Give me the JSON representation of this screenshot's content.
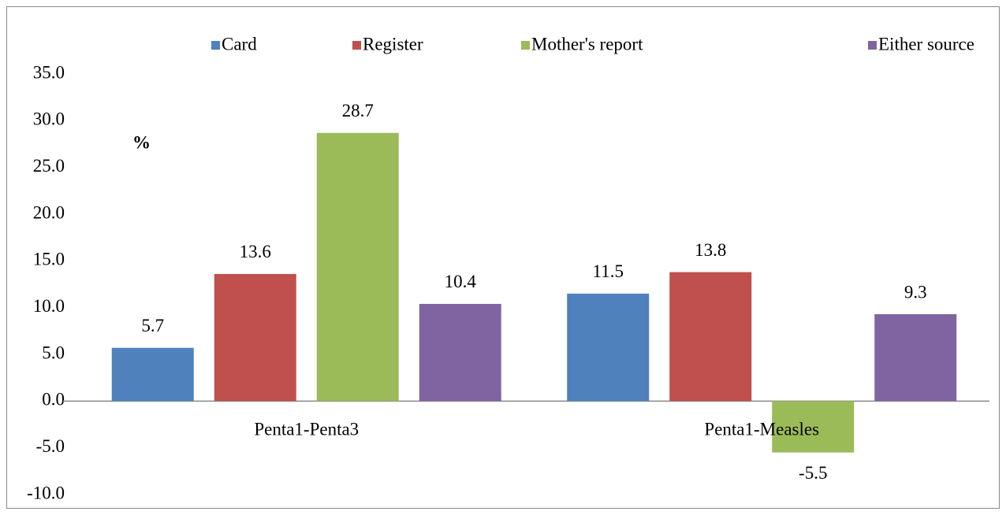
{
  "chart_data": {
    "type": "bar",
    "annotation": "%",
    "categories": [
      "Penta1-Penta3",
      "Penta1-Measles"
    ],
    "series": [
      {
        "name": "Card",
        "color": "#4f81bd",
        "values": [
          5.7,
          11.5
        ]
      },
      {
        "name": "Register",
        "color": "#c0504d",
        "values": [
          13.6,
          13.8
        ]
      },
      {
        "name": "Mother's report",
        "color": "#9bbb59",
        "values": [
          28.7,
          -5.5
        ]
      },
      {
        "name": "Either source",
        "color": "#8064a2",
        "values": [
          10.4,
          9.3
        ]
      }
    ],
    "ylim": [
      -10,
      35
    ],
    "yticks": [
      {
        "value": -10,
        "label": "-10.0"
      },
      {
        "value": -5,
        "label": "-5.0"
      },
      {
        "value": 0,
        "label": "0.0"
      },
      {
        "value": 5,
        "label": "5.0"
      },
      {
        "value": 10,
        "label": "10.0"
      },
      {
        "value": 15,
        "label": "15.0"
      },
      {
        "value": 20,
        "label": "20.0"
      },
      {
        "value": 25,
        "label": "25.0"
      },
      {
        "value": 30,
        "label": "30.0"
      },
      {
        "value": 35,
        "label": "35.0"
      }
    ],
    "grid": false,
    "legend": "top"
  }
}
